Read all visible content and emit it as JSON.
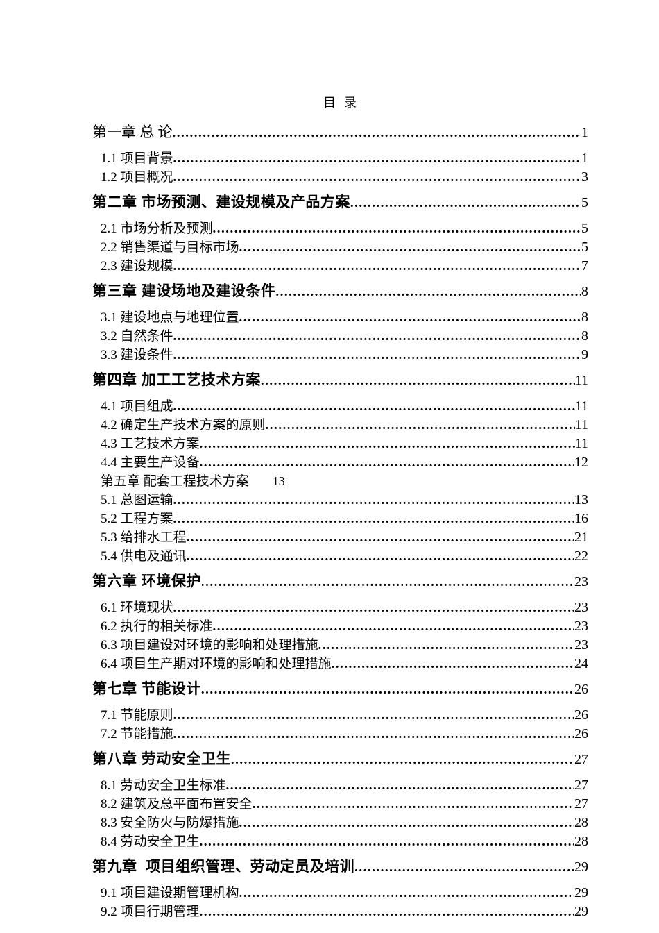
{
  "page": {
    "title": "目  录"
  },
  "toc": {
    "entries": [
      {
        "type": "chapter",
        "bold": false,
        "label": "第一章 总 论",
        "page": "1"
      },
      {
        "type": "section",
        "label": "1.1 项目背景",
        "page": "1"
      },
      {
        "type": "section",
        "label": "1.2 项目概况",
        "page": "3"
      },
      {
        "type": "chapter",
        "bold": true,
        "label": "第二章 市场预测、建设规模及产品方案",
        "page": "5"
      },
      {
        "type": "section",
        "label": "2.1 市场分析及预测",
        "page": "5"
      },
      {
        "type": "section",
        "label": "2.2 销售渠道与目标市场",
        "page": "5"
      },
      {
        "type": "section",
        "label": "2.3 建设规模",
        "page": "7"
      },
      {
        "type": "chapter",
        "bold": true,
        "label": "第三章 建设场地及建设条件",
        "page": "8"
      },
      {
        "type": "section",
        "label": "3.1 建设地点与地理位置",
        "page": "8"
      },
      {
        "type": "section",
        "label": "3.2 自然条件",
        "page": "8"
      },
      {
        "type": "section",
        "label": "3.3 建设条件",
        "page": "9"
      },
      {
        "type": "chapter",
        "bold": true,
        "label": "第四章 加工工艺技术方案",
        "page": "11"
      },
      {
        "type": "section",
        "label": "4.1 项目组成",
        "page": "11"
      },
      {
        "type": "section",
        "label": "4.2 确定生产技术方案的原则",
        "page": "11"
      },
      {
        "type": "section",
        "label": "4.3 工艺技术方案",
        "page": "11"
      },
      {
        "type": "section",
        "label": "4.4 主要生产设备",
        "page": "12"
      },
      {
        "type": "noleader",
        "label": "第五章 配套工程技术方案",
        "page": "13"
      },
      {
        "type": "section",
        "label": "5.1 总图运输",
        "page": "13"
      },
      {
        "type": "section",
        "label": "5.2 工程方案",
        "page": "16"
      },
      {
        "type": "section",
        "label": "5.3 给排水工程",
        "page": "21"
      },
      {
        "type": "section",
        "label": "5.4 供电及通讯",
        "page": "22"
      },
      {
        "type": "chapter",
        "bold": true,
        "label": "第六章 环境保护",
        "page": "23"
      },
      {
        "type": "section",
        "label": "6.1 环境现状",
        "page": "23"
      },
      {
        "type": "section",
        "label": "6.2 执行的相关标准",
        "page": "23"
      },
      {
        "type": "section",
        "label": "6.3 项目建设对环境的影响和处理措施",
        "page": "23"
      },
      {
        "type": "section",
        "label": "6.4 项目生产期对环境的影响和处理措施",
        "page": "24"
      },
      {
        "type": "chapter",
        "bold": true,
        "label": "第七章 节能设计",
        "page": "26"
      },
      {
        "type": "section",
        "label": "7.1 节能原则",
        "page": "26"
      },
      {
        "type": "section",
        "label": "7.2 节能措施",
        "page": "26"
      },
      {
        "type": "chapter",
        "bold": true,
        "label": "第八章 劳动安全卫生",
        "page": "27"
      },
      {
        "type": "section",
        "label": "8.1 劳动安全卫生标准",
        "page": "27"
      },
      {
        "type": "section",
        "label": "8.2 建筑及总平面布置安全",
        "page": "27"
      },
      {
        "type": "section",
        "label": "8.3 安全防火与防爆措施",
        "page": "28"
      },
      {
        "type": "section",
        "label": "8.4 劳动安全卫生",
        "page": "28"
      },
      {
        "type": "chapter",
        "bold": true,
        "label": "第九章  项目组织管理、劳动定员及培训",
        "page": "29"
      },
      {
        "type": "section",
        "label": "9.1 项目建设期管理机构",
        "page": "29"
      },
      {
        "type": "section",
        "label": "9.2 项目行期管理",
        "page": "29"
      }
    ]
  }
}
